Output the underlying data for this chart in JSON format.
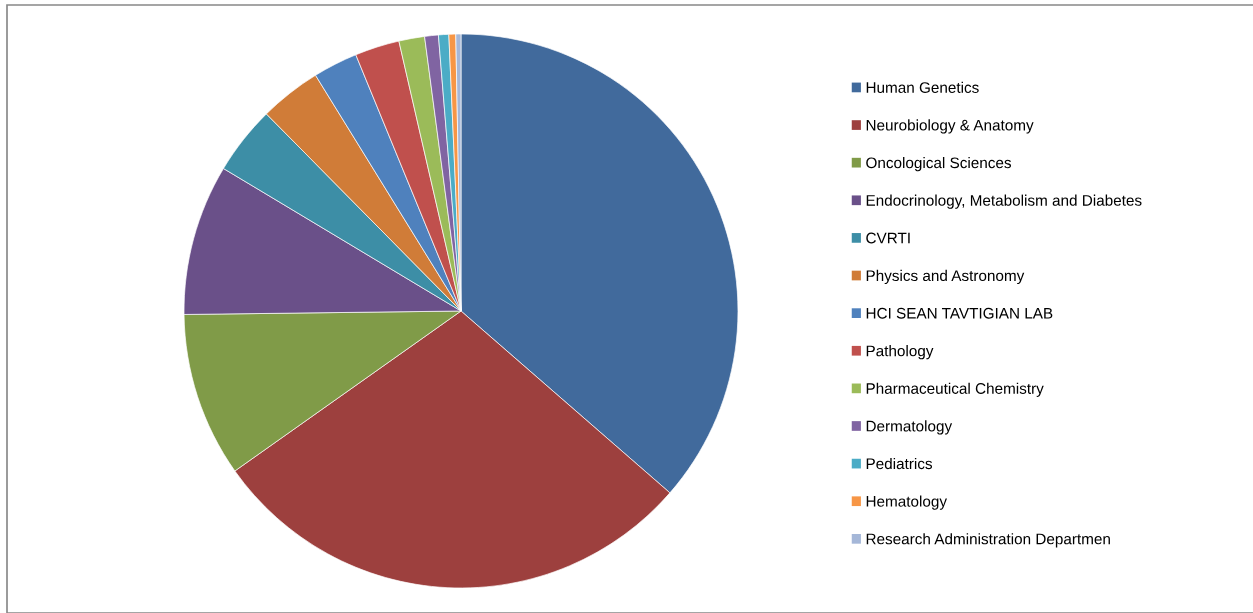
{
  "chart_data": {
    "type": "pie",
    "categories": [
      "Human Genetics",
      "Neurobiology & Anatomy",
      "Oncological Sciences",
      "Endocrinology, Metabolism and Diabetes",
      "CVRTI",
      "Physics and Astronomy",
      "HCI SEAN TAVTIGIAN LAB",
      "Pathology",
      "Pharmaceutical Chemistry",
      "Dermatology",
      "Pediatrics",
      "Hematology",
      "Research Administration Departmen"
    ],
    "values": [
      36.4,
      28.8,
      9.6,
      8.8,
      4.0,
      3.6,
      2.6,
      2.6,
      1.5,
      0.8,
      0.6,
      0.4,
      0.3
    ],
    "colors": [
      "#416a9c",
      "#9d403e",
      "#809b48",
      "#6a5089",
      "#3d8ea6",
      "#d07c38",
      "#4f81bd",
      "#c0504d",
      "#9bbb59",
      "#8064a2",
      "#4bacc6",
      "#f79646",
      "#a5b7d8"
    ],
    "legend": "right"
  }
}
